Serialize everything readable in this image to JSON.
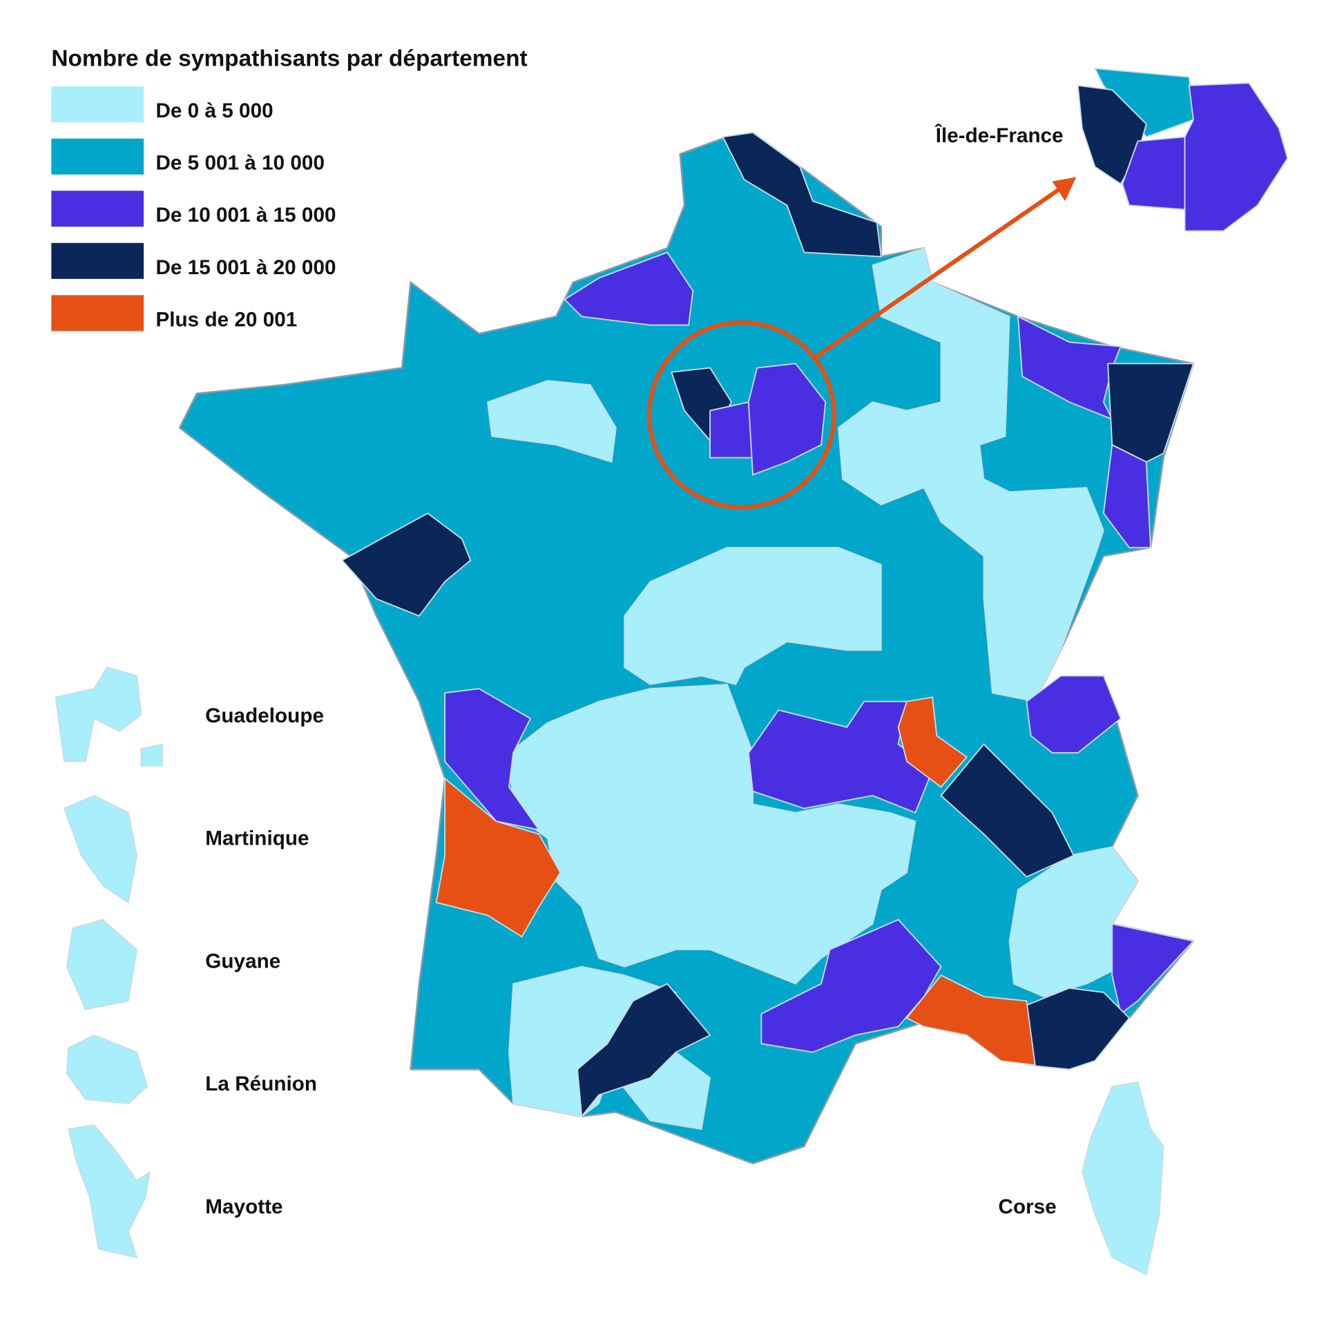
{
  "legend": {
    "title": "Nombre de sympathisants par département",
    "items": [
      {
        "label": "De 0 à 5 000",
        "color": "#a8eefb"
      },
      {
        "label": "De 5 001 à 10 000",
        "color": "#00a7cb"
      },
      {
        "label": "De 10 001 à 15 000",
        "color": "#4a2fe2"
      },
      {
        "label": "De 15 001 à 20 000",
        "color": "#0b2658"
      },
      {
        "label": "Plus de 20 001",
        "color": "#e65014"
      }
    ]
  },
  "inset_label": "Île-de-France",
  "overseas": [
    "Guadeloupe",
    "Martinique",
    "Guyane",
    "La Réunion",
    "Mayotte"
  ],
  "corse_label": "Corse"
}
